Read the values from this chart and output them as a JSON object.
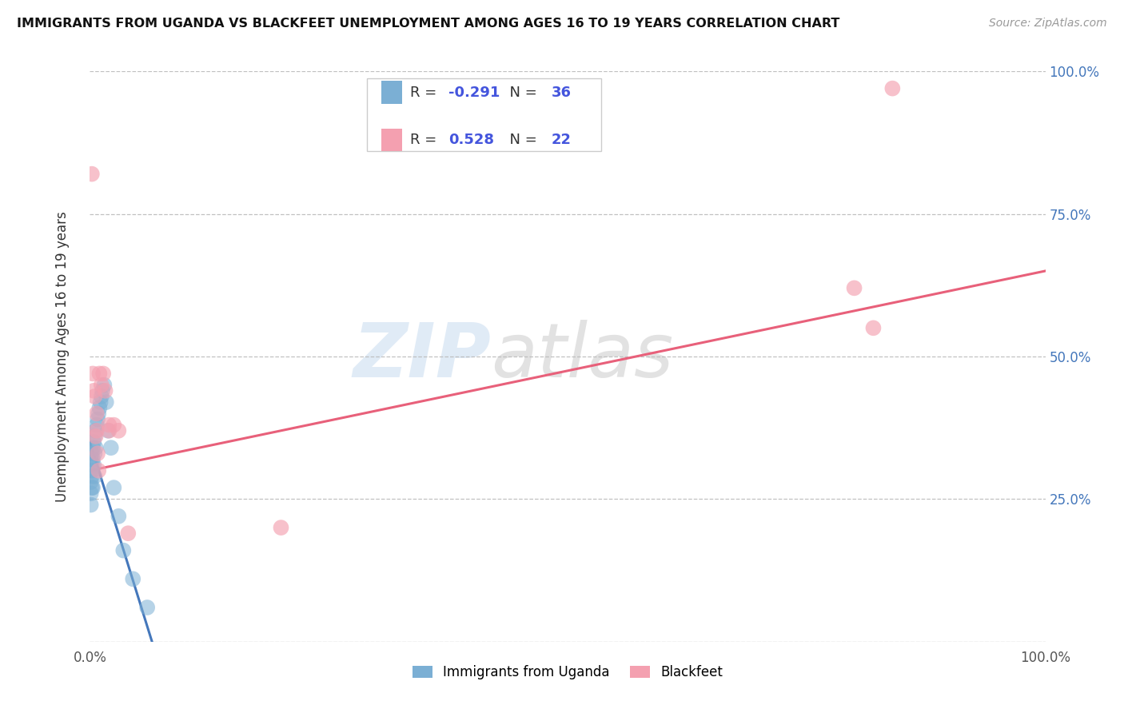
{
  "title": "IMMIGRANTS FROM UGANDA VS BLACKFEET UNEMPLOYMENT AMONG AGES 16 TO 19 YEARS CORRELATION CHART",
  "source": "Source: ZipAtlas.com",
  "ylabel": "Unemployment Among Ages 16 to 19 years",
  "xlim": [
    0,
    1
  ],
  "ylim": [
    0,
    1
  ],
  "blue_color": "#7BAFD4",
  "pink_color": "#F4A0B0",
  "blue_line_color": "#4477BB",
  "pink_line_color": "#E8607A",
  "legend_blue_label": "Immigrants from Uganda",
  "legend_pink_label": "Blackfeet",
  "blue_R": -0.291,
  "blue_N": 36,
  "pink_R": 0.528,
  "pink_N": 22,
  "watermark_zip": "ZIP",
  "watermark_atlas": "atlas",
  "background_color": "#FFFFFF",
  "grid_color": "#BBBBBB",
  "blue_x": [
    0.001,
    0.001,
    0.001,
    0.001,
    0.001,
    0.002,
    0.002,
    0.002,
    0.002,
    0.003,
    0.003,
    0.003,
    0.003,
    0.004,
    0.004,
    0.005,
    0.005,
    0.005,
    0.006,
    0.006,
    0.007,
    0.008,
    0.009,
    0.01,
    0.011,
    0.012,
    0.013,
    0.015,
    0.017,
    0.019,
    0.022,
    0.025,
    0.03,
    0.035,
    0.045,
    0.06
  ],
  "blue_y": [
    0.32,
    0.3,
    0.28,
    0.26,
    0.24,
    0.33,
    0.31,
    0.29,
    0.27,
    0.34,
    0.32,
    0.3,
    0.27,
    0.35,
    0.31,
    0.36,
    0.33,
    0.29,
    0.37,
    0.34,
    0.38,
    0.39,
    0.4,
    0.41,
    0.42,
    0.43,
    0.44,
    0.45,
    0.42,
    0.37,
    0.34,
    0.27,
    0.22,
    0.16,
    0.11,
    0.06
  ],
  "pink_x": [
    0.002,
    0.003,
    0.004,
    0.005,
    0.006,
    0.007,
    0.007,
    0.008,
    0.009,
    0.01,
    0.012,
    0.014,
    0.016,
    0.02,
    0.025,
    0.03,
    0.04,
    0.2,
    0.8,
    0.82,
    0.84,
    0.02
  ],
  "pink_y": [
    0.82,
    0.47,
    0.44,
    0.43,
    0.36,
    0.4,
    0.37,
    0.33,
    0.3,
    0.47,
    0.45,
    0.47,
    0.44,
    0.38,
    0.38,
    0.37,
    0.19,
    0.2,
    0.62,
    0.55,
    0.97,
    0.37
  ],
  "pink_line_x0": 0.0,
  "pink_line_y0": 0.3,
  "pink_line_x1": 1.0,
  "pink_line_y1": 0.65,
  "blue_line_x0": 0.0,
  "blue_line_y0": 0.35,
  "blue_line_x1": 0.065,
  "blue_line_y1": 0.0
}
